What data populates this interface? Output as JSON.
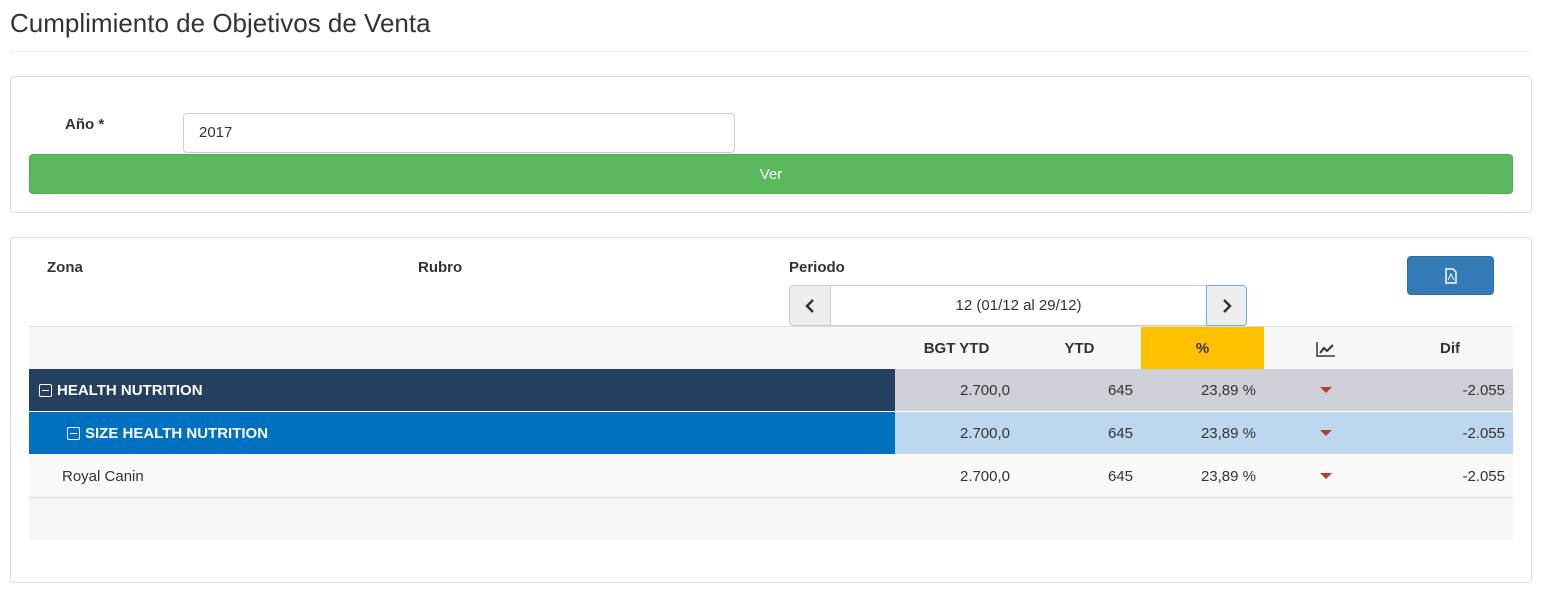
{
  "header": {
    "title": "Cumplimiento de Objetivos de Venta"
  },
  "form": {
    "year_label": "Año *",
    "year_value": "2017",
    "submit": "Ver"
  },
  "filters": {
    "zona": "Zona",
    "rubro": "Rubro",
    "periodo": "Periodo",
    "period_value": "12 (01/12 al 29/12)"
  },
  "table": {
    "columns": [
      "BGT YTD",
      "YTD",
      "%",
      "Dif"
    ],
    "rows": [
      [
        "HEALTH NUTRITION",
        "2.700,0",
        "645",
        "23,89 %",
        "-2.055"
      ],
      [
        "SIZE HEALTH NUTRITION",
        "2.700,0",
        "645",
        "23,89 %",
        "-2.055"
      ],
      [
        "Royal Canin",
        "2.700,0",
        "645",
        "23,89 %",
        "-2.055"
      ]
    ]
  }
}
